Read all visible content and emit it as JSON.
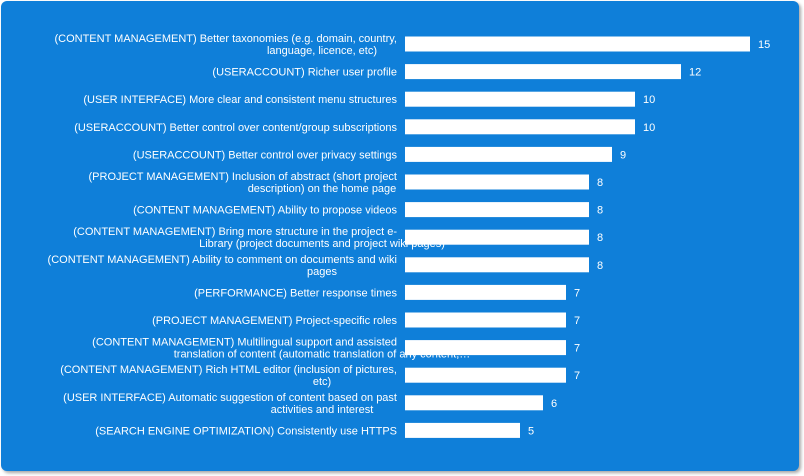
{
  "chart_data": {
    "type": "bar",
    "orientation": "horizontal",
    "title": "",
    "xlabel": "",
    "ylabel": "",
    "xlim": [
      0,
      15
    ],
    "grid": false,
    "legend": "none",
    "colors": {
      "background": "#0f7fd9",
      "bar": "#ffffff",
      "text": "#ffffff"
    },
    "categories": [
      [
        "(CONTENT MANAGEMENT) Better taxonomies (e.g. domain, country,",
        "language, licence, etc)"
      ],
      [
        "(USERACCOUNT) Richer user profile"
      ],
      [
        "(USER INTERFACE) More clear and consistent menu structures"
      ],
      [
        "(USERACCOUNT) Better control over content/group subscriptions"
      ],
      [
        "(USERACCOUNT) Better control over privacy settings"
      ],
      [
        "(PROJECT MANAGEMENT) Inclusion of abstract (short project",
        "description) on the home page"
      ],
      [
        "(CONTENT MANAGEMENT) Ability to propose videos"
      ],
      [
        "(CONTENT MANAGEMENT) Bring more structure in the project e-",
        "Library (project documents and project wiki pages)"
      ],
      [
        "(CONTENT MANAGEMENT) Ability to comment on documents and wiki",
        "pages"
      ],
      [
        "(PERFORMANCE) Better response times"
      ],
      [
        "(PROJECT MANAGEMENT) Project-specific roles"
      ],
      [
        "(CONTENT MANAGEMENT) Multilingual support and assisted",
        "translation of content (automatic translation of any content,…"
      ],
      [
        "(CONTENT MANAGEMENT) Rich HTML editor (inclusion of pictures,",
        "etc)"
      ],
      [
        "(USER INTERFACE) Automatic suggestion of content based on past",
        "activities and interest"
      ],
      [
        "(SEARCH ENGINE OPTIMIZATION) Consistently use HTTPS"
      ]
    ],
    "values": [
      15,
      12,
      10,
      10,
      9,
      8,
      8,
      8,
      8,
      7,
      7,
      7,
      7,
      6,
      5
    ]
  }
}
